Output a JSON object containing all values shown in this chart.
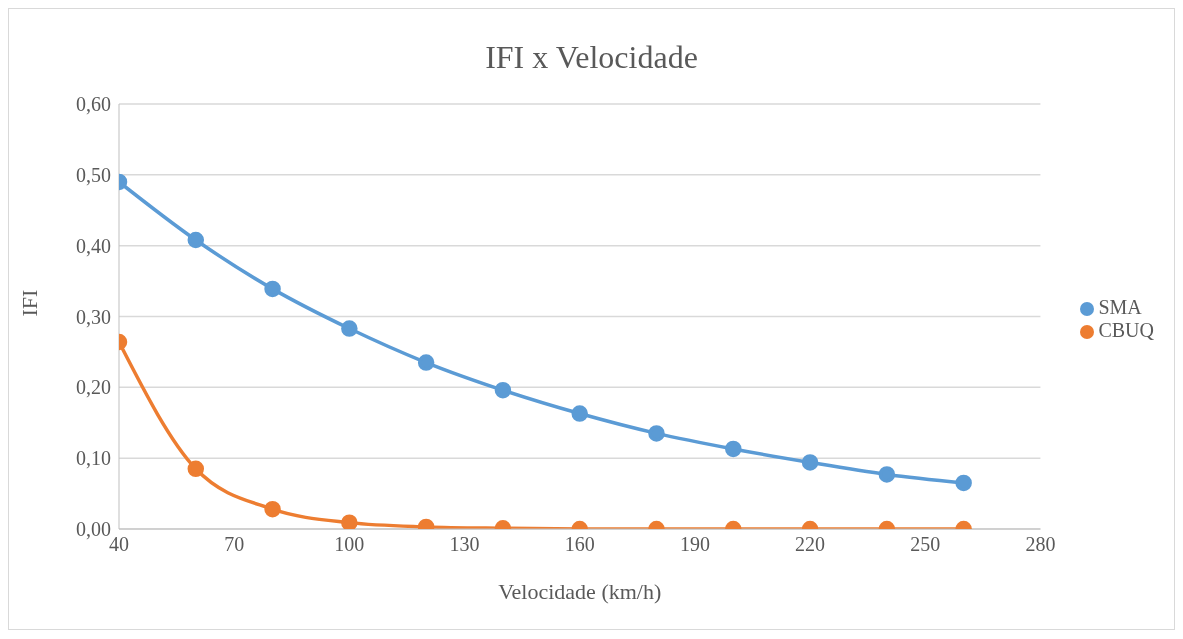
{
  "chart_data": {
    "type": "line",
    "title": "IFI x Velocidade",
    "xlabel": "Velocidade (km/h)",
    "ylabel": "IFI",
    "x": [
      40,
      60,
      80,
      100,
      120,
      140,
      160,
      180,
      200,
      220,
      240,
      260
    ],
    "series": [
      {
        "name": "SMA",
        "color": "#5b9bd5",
        "values": [
          0.49,
          0.408,
          0.339,
          0.283,
          0.235,
          0.196,
          0.163,
          0.135,
          0.113,
          0.094,
          0.077,
          0.065
        ]
      },
      {
        "name": "CBUQ",
        "color": "#ed7d31",
        "values": [
          0.264,
          0.085,
          0.028,
          0.009,
          0.003,
          0.001,
          0,
          0,
          0,
          0,
          0,
          0
        ]
      }
    ],
    "xlim": [
      40,
      280
    ],
    "xticks": [
      40,
      70,
      100,
      130,
      160,
      190,
      220,
      250,
      280
    ],
    "ylim": [
      0,
      0.6
    ],
    "yticks": [
      {
        "value": 0,
        "label": "0,00"
      },
      {
        "value": 0.1,
        "label": "0,10"
      },
      {
        "value": 0.2,
        "label": "0,20"
      },
      {
        "value": 0.3,
        "label": "0,30"
      },
      {
        "value": 0.4,
        "label": "0,40"
      },
      {
        "value": 0.5,
        "label": "0,50"
      },
      {
        "value": 0.6,
        "label": "0,60"
      }
    ],
    "grid": "y",
    "legend": "right",
    "marker": "circle",
    "line_style": "solid"
  }
}
